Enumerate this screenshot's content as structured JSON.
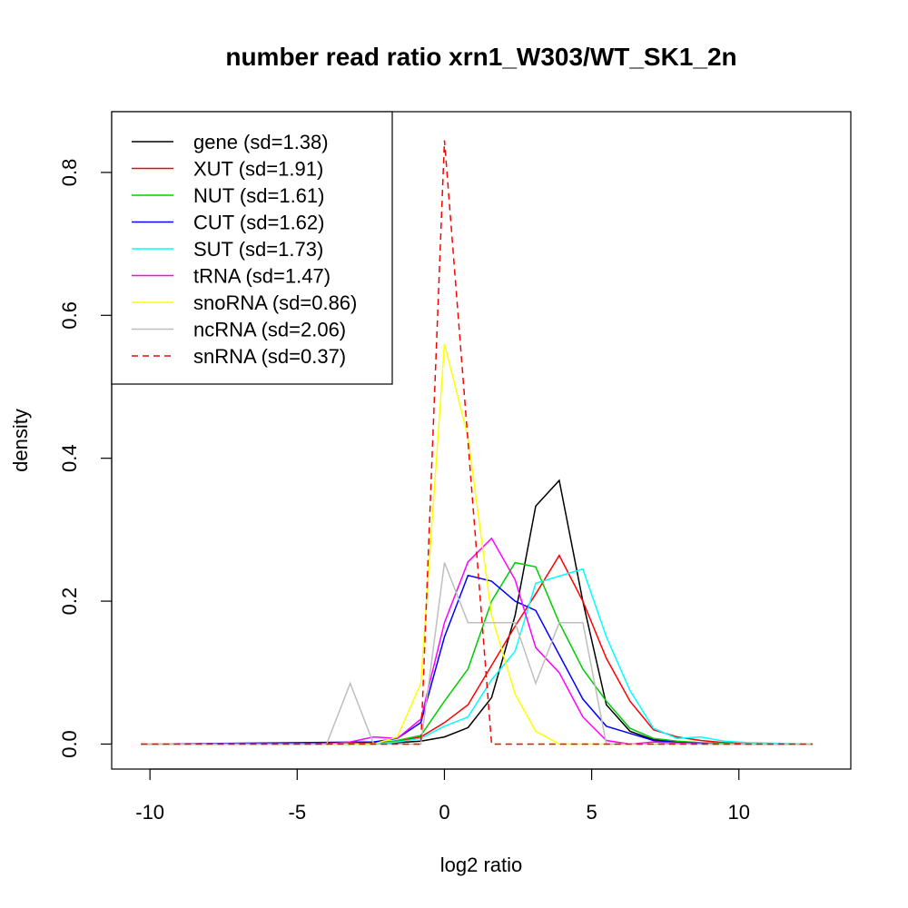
{
  "chart_data": {
    "type": "line",
    "title": "number read ratio xrn1_W303/WT_SK1_2n",
    "xlabel": "log2 ratio",
    "ylabel": "density",
    "xlim": [
      -11.3,
      13.8
    ],
    "ylim": [
      -0.035,
      0.885
    ],
    "x_ticks": [
      -10,
      -5,
      0,
      5,
      10
    ],
    "x_tick_labels": [
      "-10",
      "-5",
      "0",
      "5",
      "10"
    ],
    "y_ticks": [
      0.0,
      0.2,
      0.4,
      0.6,
      0.8
    ],
    "y_tick_labels": [
      "0.0",
      "0.2",
      "0.4",
      "0.6",
      "0.8"
    ],
    "grid": false,
    "legend_position": "top-left",
    "series": [
      {
        "name": "gene (sd=1.38)",
        "color": "#000000",
        "dash": "solid",
        "x": [
          -10.3,
          -2.4,
          -1.6,
          -0.8,
          0,
          0.8,
          1.6,
          2.4,
          3.1,
          3.9,
          4.7,
          5.5,
          6.3,
          7.1,
          7.9,
          8.7,
          9.5,
          10.3,
          12.5
        ],
        "y": [
          0,
          0,
          0.002,
          0.004,
          0.01,
          0.023,
          0.065,
          0.18,
          0.333,
          0.369,
          0.2,
          0.055,
          0.018,
          0.006,
          0.003,
          0.001,
          0.0005,
          0,
          0
        ]
      },
      {
        "name": "XUT (sd=1.91)",
        "color": "#ff0000",
        "dash": "solid",
        "x": [
          -10.3,
          -2.4,
          -1.6,
          -0.8,
          0,
          0.8,
          1.6,
          2.4,
          3.1,
          3.9,
          4.7,
          5.5,
          6.3,
          7.1,
          7.9,
          8.7,
          9.5,
          10.3,
          12.5
        ],
        "y": [
          0,
          0.002,
          0.004,
          0.01,
          0.03,
          0.055,
          0.11,
          0.165,
          0.21,
          0.264,
          0.2,
          0.12,
          0.06,
          0.02,
          0.01,
          0.005,
          0.002,
          0.001,
          0
        ]
      },
      {
        "name": "NUT (sd=1.61)",
        "color": "#00cd00",
        "dash": "solid",
        "x": [
          -10.3,
          -2.4,
          -1.6,
          -0.8,
          0,
          0.8,
          1.6,
          2.4,
          3.1,
          3.9,
          4.7,
          5.5,
          6.3,
          7.1,
          7.9,
          8.7,
          9.5,
          10.3,
          12.5
        ],
        "y": [
          0,
          0,
          0.005,
          0.012,
          0.06,
          0.105,
          0.2,
          0.254,
          0.248,
          0.17,
          0.105,
          0.06,
          0.022,
          0.008,
          0.004,
          0.002,
          0.001,
          0,
          0
        ]
      },
      {
        "name": "CUT (sd=1.62)",
        "color": "#0000ff",
        "dash": "solid",
        "x": [
          -10.3,
          -2.4,
          -1.6,
          -0.8,
          0,
          0.8,
          1.6,
          2.4,
          3.1,
          3.9,
          4.7,
          5.5,
          6.3,
          7.1,
          7.9,
          8.7,
          9.5,
          10.3,
          12.5
        ],
        "y": [
          0,
          0.003,
          0.008,
          0.03,
          0.15,
          0.236,
          0.228,
          0.2,
          0.187,
          0.125,
          0.063,
          0.025,
          0.015,
          0.005,
          0.002,
          0.001,
          0,
          0,
          0
        ]
      },
      {
        "name": "SUT (sd=1.73)",
        "color": "#00ffff",
        "dash": "solid",
        "x": [
          -10.3,
          -2.4,
          -1.6,
          -0.8,
          0,
          0.8,
          1.6,
          2.4,
          3.1,
          3.9,
          4.7,
          5.5,
          6.3,
          7.1,
          7.9,
          8.7,
          9.5,
          10.3,
          12.5
        ],
        "y": [
          0,
          0,
          0.003,
          0.008,
          0.025,
          0.038,
          0.09,
          0.13,
          0.225,
          0.235,
          0.245,
          0.15,
          0.075,
          0.022,
          0.008,
          0.01,
          0.004,
          0.002,
          0
        ]
      },
      {
        "name": "tRNA (sd=1.47)",
        "color": "#ff00ff",
        "dash": "solid",
        "x": [
          -10.3,
          -4.0,
          -3.2,
          -2.4,
          -1.6,
          -0.8,
          0,
          0.8,
          1.6,
          2.4,
          3.1,
          3.9,
          4.7,
          5.5,
          6.3,
          7.1,
          8.7,
          12.5
        ],
        "y": [
          0,
          0,
          0.003,
          0.01,
          0.008,
          0.035,
          0.17,
          0.255,
          0.288,
          0.23,
          0.135,
          0.1,
          0.038,
          0.005,
          0,
          0.003,
          0,
          0
        ]
      },
      {
        "name": "snoRNA (sd=0.86)",
        "color": "#ffff00",
        "dash": "solid",
        "x": [
          -10.3,
          -2.4,
          -1.6,
          -0.8,
          0,
          0.8,
          1.6,
          2.4,
          3.1,
          3.9,
          12.5
        ],
        "y": [
          0,
          0,
          0.01,
          0.085,
          0.56,
          0.43,
          0.18,
          0.07,
          0.018,
          0,
          0
        ]
      },
      {
        "name": "ncRNA (sd=2.06)",
        "color": "#bebebe",
        "dash": "solid",
        "x": [
          -10.3,
          -4.0,
          -3.2,
          -2.4,
          -0.8,
          0,
          0.8,
          1.6,
          2.4,
          3.1,
          3.9,
          4.7,
          5.5,
          12.5
        ],
        "y": [
          0,
          0,
          0.085,
          0,
          0,
          0.254,
          0.17,
          0.17,
          0.17,
          0.085,
          0.17,
          0.17,
          0,
          0
        ]
      },
      {
        "name": "snRNA (sd=0.37)",
        "color": "#ff0000",
        "dash": "dashed",
        "x": [
          -10.3,
          -0.8,
          0,
          1.6,
          12.5
        ],
        "y": [
          0,
          0,
          0.845,
          0,
          0
        ]
      }
    ]
  }
}
